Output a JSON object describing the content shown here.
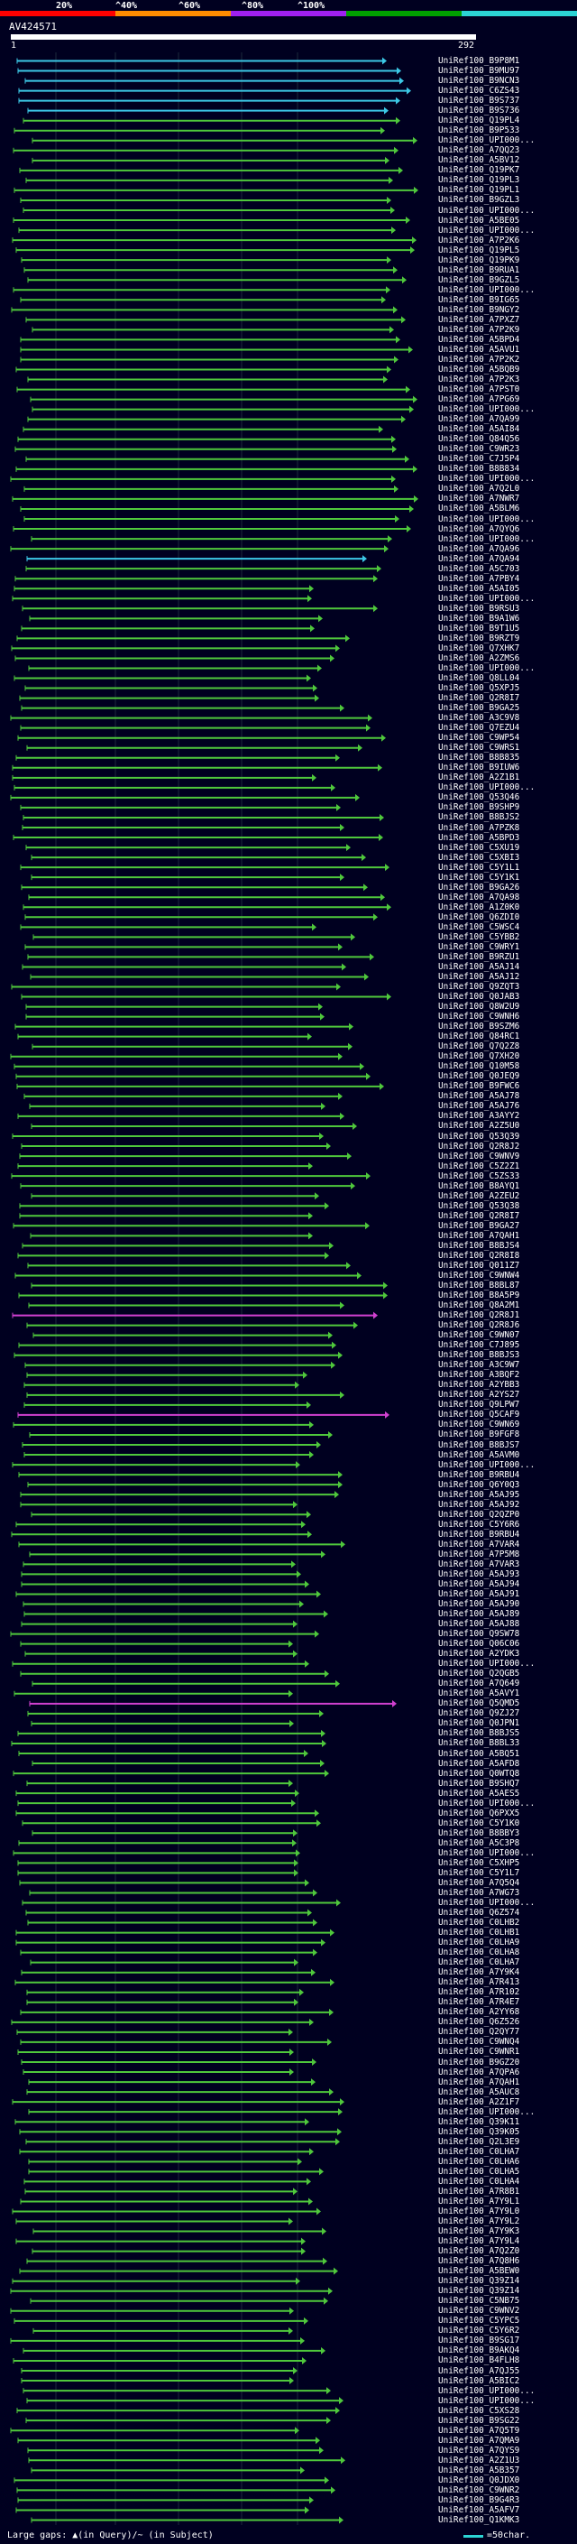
{
  "legend": {
    "labels": [
      "20%",
      "^40%",
      "^60%",
      "^80%",
      "^100%"
    ],
    "colors": [
      "#ff0000",
      "#ff8c00",
      "#a020f0",
      "#00a000",
      "#2cd4d4"
    ]
  },
  "query": {
    "title": "AV424571",
    "start": "1",
    "end": "292"
  },
  "hits": [
    "UniRef100_B9P8M1",
    "UniRef100_B9MU97",
    "UniRef100_B9NCN3",
    "UniRef100_C6ZS43",
    "UniRef100_B9S737",
    "UniRef100_B9S736",
    "UniRef100_Q19PL4",
    "UniRef100_B9P533",
    "UniRef100_UPI000...",
    "UniRef100_A7QQ23",
    "UniRef100_A5BV12",
    "UniRef100_Q19PK7",
    "UniRef100_Q19PL3",
    "UniRef100_Q19PL1",
    "UniRef100_B9GZL3",
    "UniRef100_UPI000...",
    "UniRef100_A5BE05",
    "UniRef100_UPI000...",
    "UniRef100_A7P2K6",
    "UniRef100_Q19PL5",
    "UniRef100_Q19PK9",
    "UniRef100_B9RUA1",
    "UniRef100_B9GZL5",
    "UniRef100_UPI000...",
    "UniRef100_B9IG65",
    "UniRef100_B9NGY2",
    "UniRef100_A7PXZ7",
    "UniRef100_A7P2K9",
    "UniRef100_A5BPD4",
    "UniRef100_A5AVU1",
    "UniRef100_A7P2K2",
    "UniRef100_A5BQB9",
    "UniRef100_A7P2K3",
    "UniRef100_A7PST0",
    "UniRef100_A7PG69",
    "UniRef100_UPI000...",
    "UniRef100_A7QA99",
    "UniRef100_A5AI84",
    "UniRef100_Q84Q56",
    "UniRef100_C9WR23",
    "UniRef100_C7J5P4",
    "UniRef100_B8B834",
    "UniRef100_UPI000...",
    "UniRef100_A7Q2L0",
    "UniRef100_A7NWR7",
    "UniRef100_A5BLM6",
    "UniRef100_UPI000...",
    "UniRef100_A7QYQ6",
    "UniRef100_UPI000...",
    "UniRef100_A7QA96",
    "UniRef100_A7QA94",
    "UniRef100_A5C703",
    "UniRef100_A7PBY4",
    "UniRef100_A5AI05",
    "UniRef100_UPI000...",
    "UniRef100_B9RSU3",
    "UniRef100_B9A1W6",
    "UniRef100_B9T1U5",
    "UniRef100_B9RZT9",
    "UniRef100_Q7XHK7",
    "UniRef100_A2ZMS6",
    "UniRef100_UPI000...",
    "UniRef100_Q8LL04",
    "UniRef100_Q5XPJ5",
    "UniRef100_Q2R8I7",
    "UniRef100_B9GA25",
    "UniRef100_A3C9V8",
    "UniRef100_Q7EZU4",
    "UniRef100_C9WP54",
    "UniRef100_C9WRS1",
    "UniRef100_B8B835",
    "UniRef100_B9IUW6",
    "UniRef100_A2Z1B1",
    "UniRef100_UPI000...",
    "UniRef100_Q53Q46",
    "UniRef100_B9SHP9",
    "UniRef100_B8BJS2",
    "UniRef100_A7PZK8",
    "UniRef100_A5BPD3",
    "UniRef100_C5XU19",
    "UniRef100_C5XBI3",
    "UniRef100_C5Y1L1",
    "UniRef100_C5Y1K1",
    "UniRef100_B9GA26",
    "UniRef100_A7QA98",
    "UniRef100_A1Z0K0",
    "UniRef100_Q6ZDI0",
    "UniRef100_C5WSC4",
    "UniRef100_C5YBB2",
    "UniRef100_C9WRY1",
    "UniRef100_B9RZU1",
    "UniRef100_A5AJ14",
    "UniRef100_A5AJ12",
    "UniRef100_Q9ZQT3",
    "UniRef100_Q0JAB3",
    "UniRef100_Q8W2U9",
    "UniRef100_C9WNH6",
    "UniRef100_B9SZM6",
    "UniRef100_Q84RC1",
    "UniRef100_Q7Q2Z8",
    "UniRef100_Q7XH20",
    "UniRef100_Q10M58",
    "UniRef100_Q0JEQ9",
    "UniRef100_B9FWC6",
    "UniRef100_A5AJ78",
    "UniRef100_A5AJ76",
    "UniRef100_A3AYY2",
    "UniRef100_A2Z5U0",
    "UniRef100_Q53Q39",
    "UniRef100_Q2R8J2",
    "UniRef100_C9WNV9",
    "UniRef100_C5Z2Z1",
    "UniRef100_C5ZS33",
    "UniRef100_B8AYQ1",
    "UniRef100_A2ZEU2",
    "UniRef100_Q53Q38",
    "UniRef100_Q2R8I7",
    "UniRef100_B9GA27",
    "UniRef100_A7QAH1",
    "UniRef100_B8BJS4",
    "UniRef100_Q2R8I8",
    "UniRef100_Q011Z7",
    "UniRef100_C9WNW4",
    "UniRef100_B8BL87",
    "UniRef100_B8A5P9",
    "UniRef100_Q8A2M1",
    "UniRef100_Q2R8J1",
    "UniRef100_Q2R8J6",
    "UniRef100_C9WN07",
    "UniRef100_C7J895",
    "UniRef100_B8BJS3",
    "UniRef100_A3C9W7",
    "UniRef100_A3BQF2",
    "UniRef100_A2YBB3",
    "UniRef100_A2YS27",
    "UniRef100_Q9LPW7",
    "UniRef100_Q5CAF9",
    "UniRef100_C9WN69",
    "UniRef100_B9FGF8",
    "UniRef100_B8BJS7",
    "UniRef100_A5AVM0",
    "UniRef100_UPI000...",
    "UniRef100_B9RBU4",
    "UniRef100_Q6Y0Q3",
    "UniRef100_A5AJ95",
    "UniRef100_A5AJ92",
    "UniRef100_Q2QZP0",
    "UniRef100_C5Y6R6",
    "UniRef100_B9RBU4",
    "UniRef100_A7VAR4",
    "UniRef100_A7P5M8",
    "UniRef100_A7VAR3",
    "UniRef100_A5AJ93",
    "UniRef100_A5AJ94",
    "UniRef100_A5AJ91",
    "UniRef100_A5AJ90",
    "UniRef100_A5AJ89",
    "UniRef100_A5AJ88",
    "UniRef100_Q9SW78",
    "UniRef100_Q06C06",
    "UniRef100_A2YDK3",
    "UniRef100_UPI000...",
    "UniRef100_Q2QGB5",
    "UniRef100_A7Q649",
    "UniRef100_A5AVY1",
    "UniRef100_Q5QMD5",
    "UniRef100_Q9ZJ27",
    "UniRef100_Q0JPN1",
    "UniRef100_B8BJS5",
    "UniRef100_B8BL33",
    "UniRef100_A5BQ51",
    "UniRef100_A5AFD8",
    "UniRef100_Q0WTQ8",
    "UniRef100_B9SHQ7",
    "UniRef100_A5AES5",
    "UniRef100_UPI000...",
    "UniRef100_Q6PXX5",
    "UniRef100_C5Y1K0",
    "UniRef100_B8BBY3",
    "UniRef100_A5C3P8",
    "UniRef100_UPI000...",
    "UniRef100_C5XHP5",
    "UniRef100_C5Y1L7",
    "UniRef100_A7Q5Q4",
    "UniRef100_A7WG73",
    "UniRef100_UPI000...",
    "UniRef100_Q6Z574",
    "UniRef100_C0LHB2",
    "UniRef100_C0LHB1",
    "UniRef100_C0LHA9",
    "UniRef100_C0LHA8",
    "UniRef100_C0LHA7",
    "UniRef100_A7Y9K4",
    "UniRef100_A7R413",
    "UniRef100_A7R102",
    "UniRef100_A7R4E7",
    "UniRef100_A2YY68",
    "UniRef100_Q6Z526",
    "UniRef100_Q2QY77",
    "UniRef100_C9WNQ4",
    "UniRef100_C9WNR1",
    "UniRef100_B9GZ20",
    "UniRef100_A7QPA6",
    "UniRef100_A7QAH1",
    "UniRef100_A5AUC8",
    "UniRef100_A2Z1F7",
    "UniRef100_UPI000...",
    "UniRef100_Q39K11",
    "UniRef100_Q39K05",
    "UniRef100_Q2L3E9",
    "UniRef100_C0LHA7",
    "UniRef100_C0LHA6",
    "UniRef100_C0LHA5",
    "UniRef100_C0LHA4",
    "UniRef100_A7R8B1",
    "UniRef100_A7Y9L1",
    "UniRef100_A7Y9L0",
    "UniRef100_A7Y9L2",
    "UniRef100_A7Y9K3",
    "UniRef100_A7Y9L4",
    "UniRef100_A7Q2Z0",
    "UniRef100_A7Q8H6",
    "UniRef100_A5BEW0",
    "UniRef100_Q39Z14",
    "UniRef100_Q39Z14",
    "UniRef100_C5NB75",
    "UniRef100_C9WNV2",
    "UniRef100_C5YPC5",
    "UniRef100_C5Y6R2",
    "UniRef100_B9SG17",
    "UniRef100_B9AKQ4",
    "UniRef100_B4FLH8",
    "UniRef100_A7QJ55",
    "UniRef100_A5BIC2",
    "UniRef100_UPI000...",
    "UniRef100_UPI000...",
    "UniRef100_C5XS28",
    "UniRef100_B9SG22",
    "UniRef100_A7Q5T9",
    "UniRef100_A7QMA9",
    "UniRef100_A7QYS9",
    "UniRef100_A2Z1U3",
    "UniRef100_A5B357",
    "UniRef100_Q0JDX0",
    "UniRef100_C9WNR2",
    "UniRef100_B9G4R3",
    "UniRef100_A5AFV7",
    "UniRef100_Q1KMK3"
  ],
  "footer": {
    "left": "Large gaps: ▲(in Query)/~ (in Subject)",
    "right": "=50char.",
    "swatch_color": "#2cd4d4"
  }
}
